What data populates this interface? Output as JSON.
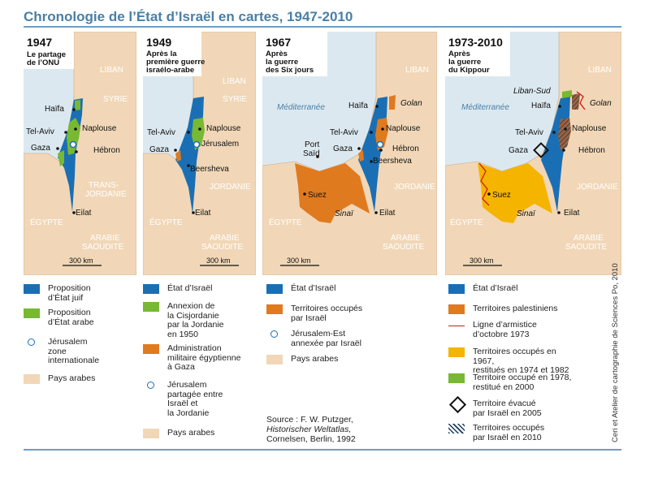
{
  "title": "Chronologie de l’État d’Israël en cartes, 1947-2010",
  "colors": {
    "israel": "#1a6fb4",
    "arab_state": "#77b932",
    "occupied": "#e07a1f",
    "restituted": "#f5b400",
    "arab_countries": "#f1d7b7",
    "sea": "#dbe8ef",
    "armistice_line": "#d11919"
  },
  "panels": [
    {
      "year": "1947",
      "subtitle": "Le partage\nde l’ONU",
      "scale": "300 km",
      "labels": {
        "liban": "LIBAN",
        "syrie": "SYRIE",
        "haifa": "Haïfa",
        "telaviv": "Tel-Aviv",
        "naplouse": "Naplouse",
        "gaza": "Gaza",
        "hebron": "Hébron",
        "transjordanie": "TRANS-\nJORDANIE",
        "egypte": "ÉGYPTE",
        "eilat": "Eilat",
        "arabie": "ARABIE\nSAOUDITE"
      }
    },
    {
      "year": "1949",
      "subtitle": "Après la\npremière guerre\nisraélo-arabe",
      "scale": "300 km",
      "labels": {
        "liban": "LIBAN",
        "syrie": "SYRIE",
        "telaviv": "Tel-Aviv",
        "naplouse": "Naplouse",
        "gaza": "Gaza",
        "jerusalem": "Jérusalem",
        "beersheva": "Beersheva",
        "jordanie": "JORDANIE",
        "egypte": "ÉGYPTE",
        "eilat": "Eilat",
        "arabie": "ARABIE\nSAOUDITE"
      }
    },
    {
      "year": "1967",
      "subtitle": "Après\nla guerre\ndes Six jours",
      "scale": "300 km",
      "labels": {
        "liban": "LIBAN",
        "mediterranee": "Méditerranée",
        "haifa": "Haïfa",
        "golan": "Golan",
        "telaviv": "Tel-Aviv",
        "naplouse": "Naplouse",
        "portsaid": "Port\nSaïd",
        "gaza": "Gaza",
        "hebron": "Hébron",
        "beersheva": "Beersheva",
        "jordanie": "JORDANIE",
        "suez": "Suez",
        "sinai": "Sinaï",
        "eilat": "Eilat",
        "egypte": "ÉGYPTE",
        "arabie": "ARABIE\nSAOUDITE"
      }
    },
    {
      "year": "1973-2010",
      "subtitle": "Après\nla guerre\ndu Kippour",
      "scale": "300 km",
      "labels": {
        "liban": "LIBAN",
        "mediterranee": "Méditerranée",
        "libansud": "Liban-Sud",
        "haifa": "Haïfa",
        "golan": "Golan",
        "telaviv": "Tel-Aviv",
        "naplouse": "Naplouse",
        "gaza": "Gaza",
        "hebron": "Hébron",
        "jordanie": "JORDANIE",
        "suez": "Suez",
        "sinai": "Sinaï",
        "eilat": "Eilat",
        "egypte": "ÉGYPTE",
        "arabie": "ARABIE\nSAOUDITE"
      }
    }
  ],
  "legends": {
    "l1947": [
      {
        "kind": "swatch",
        "color": "#1a6fb4",
        "text": "Proposition\nd’État juif"
      },
      {
        "kind": "swatch",
        "color": "#77b932",
        "text": "Proposition\nd’État arabe"
      },
      {
        "kind": "circle",
        "text": "Jérusalem\nzone\ninternationale"
      },
      {
        "kind": "swatch",
        "color": "#f1d7b7",
        "text": "Pays arabes"
      }
    ],
    "l1949": [
      {
        "kind": "swatch",
        "color": "#1a6fb4",
        "text": "État d’Israël"
      },
      {
        "kind": "swatch",
        "color": "#77b932",
        "text": "Annexion de\nla Cisjordanie\npar la Jordanie\nen 1950"
      },
      {
        "kind": "swatch",
        "color": "#e07a1f",
        "text": "Administration\nmilitaire égyptienne\nà Gaza"
      },
      {
        "kind": "circle",
        "text": "Jérusalem\npartagée entre\nIsraël et\nla Jordanie"
      },
      {
        "kind": "swatch",
        "color": "#f1d7b7",
        "text": "Pays arabes"
      }
    ],
    "l1967": [
      {
        "kind": "swatch",
        "color": "#1a6fb4",
        "text": "État d’Israël"
      },
      {
        "kind": "swatch",
        "color": "#e07a1f",
        "text": "Territoires occupés\npar Israël"
      },
      {
        "kind": "circle",
        "text": "Jérusalem-Est\nannexée par Israël"
      },
      {
        "kind": "swatch",
        "color": "#f1d7b7",
        "text": "Pays arabes"
      }
    ],
    "l1973": [
      {
        "kind": "swatch",
        "color": "#1a6fb4",
        "text": "État d’Israël"
      },
      {
        "kind": "swatch",
        "color": "#e07a1f",
        "text": "Territoires palestiniens"
      },
      {
        "kind": "line",
        "text": "Ligne d’armistice\nd’octobre 1973"
      },
      {
        "kind": "swatch",
        "color": "#f5b400",
        "text": "Territoires occupés en 1967,\nrestitués en 1974 et 1982"
      },
      {
        "kind": "swatch",
        "color": "#77b932",
        "text": "Territoire occupé en 1978,\nrestitué en 2000"
      },
      {
        "kind": "diamond",
        "text": "Territoire évacué\npar Israël en 2005"
      },
      {
        "kind": "hatch",
        "text": "Territoires occupés\npar Israël en 2010"
      }
    ]
  },
  "source": {
    "line1": "Source : F. W. Putzger,",
    "line2": "Historischer Weltatlas,",
    "line3": "Cornelsen, Berlin, 1992"
  },
  "credit": "Ceri et Atelier de cartographie de Sciences Po, 2010"
}
